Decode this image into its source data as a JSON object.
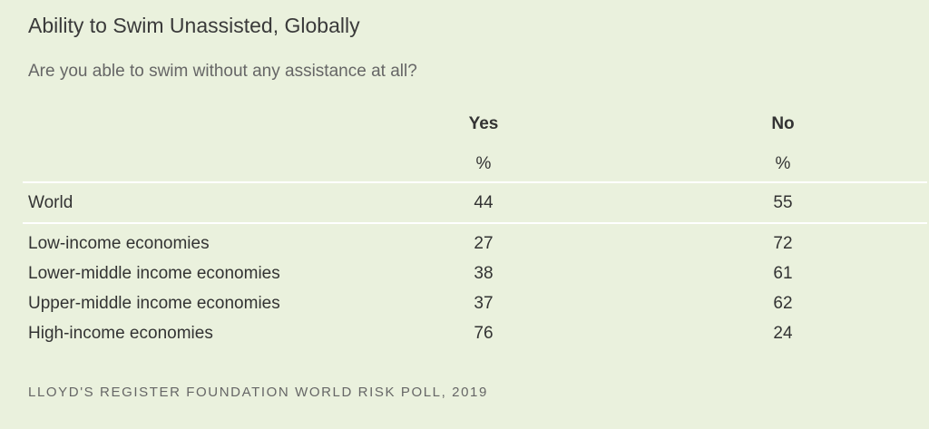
{
  "title": "Ability to Swim Unassisted, Globally",
  "subtitle": "Are you able to swim without any assistance at all?",
  "columns": [
    {
      "label": "Yes",
      "unit": "%"
    },
    {
      "label": "No",
      "unit": "%"
    }
  ],
  "source": "LLOYD'S REGISTER FOUNDATION WORLD RISK POLL, 2019",
  "colors": {
    "background": "#eaf1dd",
    "rule": "#ffffff",
    "text": "#333333"
  },
  "chart_data": {
    "type": "table",
    "title": "Ability to Swim Unassisted, Globally",
    "subtitle": "Are you able to swim without any assistance at all?",
    "columns": [
      "Yes",
      "No"
    ],
    "unit": "%",
    "rows": [
      {
        "label": "World",
        "values": [
          "44",
          "55"
        ]
      },
      {
        "label": "Low-income economies",
        "values": [
          "27",
          "72"
        ]
      },
      {
        "label": "Lower-middle income economies",
        "values": [
          "38",
          "61"
        ]
      },
      {
        "label": "Upper-middle income economies",
        "values": [
          "37",
          "62"
        ]
      },
      {
        "label": "High-income economies",
        "values": [
          "76",
          "24"
        ]
      }
    ],
    "source": "LLOYD'S REGISTER FOUNDATION WORLD RISK POLL, 2019"
  }
}
